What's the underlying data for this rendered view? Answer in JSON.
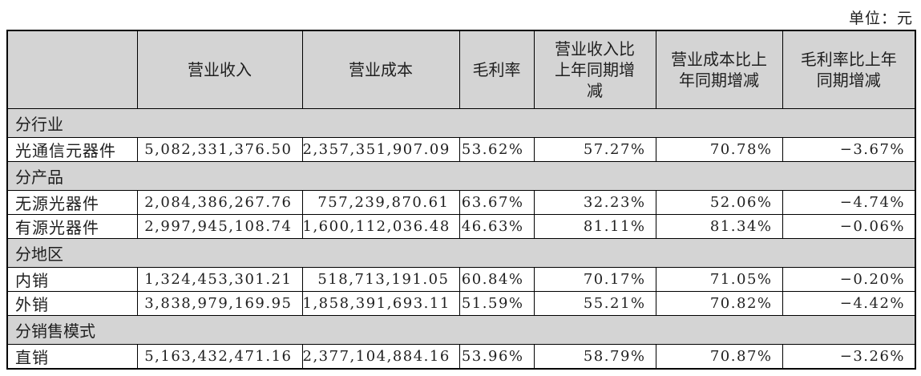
{
  "page": {
    "unit_label": "单位：元"
  },
  "colors": {
    "header_bg": "#d4d4d4",
    "section_bg": "#d4d4d4",
    "border": "#000000",
    "text": "#1f1f1f",
    "row_bg": "#ffffff"
  },
  "table": {
    "columns": [
      "",
      "营业收入",
      "营业成本",
      "毛利率",
      "营业收入比上年同期增减",
      "营业成本比上年同期增减",
      "毛利率比上年同期增减"
    ],
    "sections": [
      {
        "title": "分行业",
        "rows": [
          {
            "name": "光通信元器件",
            "revenue": "5,082,331,376.50",
            "cost": "2,357,351,907.09",
            "gross_margin": "53.62%",
            "revenue_yoy": "57.27%",
            "cost_yoy": "70.78%",
            "gross_margin_yoy": "−3.67%"
          }
        ]
      },
      {
        "title": "分产品",
        "rows": [
          {
            "name": "无源光器件",
            "revenue": "2,084,386,267.76",
            "cost": "757,239,870.61",
            "gross_margin": "63.67%",
            "revenue_yoy": "32.23%",
            "cost_yoy": "52.06%",
            "gross_margin_yoy": "−4.74%"
          },
          {
            "name": "有源光器件",
            "revenue": "2,997,945,108.74",
            "cost": "1,600,112,036.48",
            "gross_margin": "46.63%",
            "revenue_yoy": "81.11%",
            "cost_yoy": "81.34%",
            "gross_margin_yoy": "−0.06%"
          }
        ]
      },
      {
        "title": "分地区",
        "rows": [
          {
            "name": "内销",
            "revenue": "1,324,453,301.21",
            "cost": "518,713,191.05",
            "gross_margin": "60.84%",
            "revenue_yoy": "70.17%",
            "cost_yoy": "71.05%",
            "gross_margin_yoy": "−0.20%"
          },
          {
            "name": "外销",
            "revenue": "3,838,979,169.95",
            "cost": "1,858,391,693.11",
            "gross_margin": "51.59%",
            "revenue_yoy": "55.21%",
            "cost_yoy": "70.82%",
            "gross_margin_yoy": "−4.42%"
          }
        ]
      },
      {
        "title": "分销售模式",
        "rows": [
          {
            "name": "直销",
            "revenue": "5,163,432,471.16",
            "cost": "2,377,104,884.16",
            "gross_margin": "53.96%",
            "revenue_yoy": "58.79%",
            "cost_yoy": "70.87%",
            "gross_margin_yoy": "−3.26%"
          }
        ]
      }
    ]
  }
}
